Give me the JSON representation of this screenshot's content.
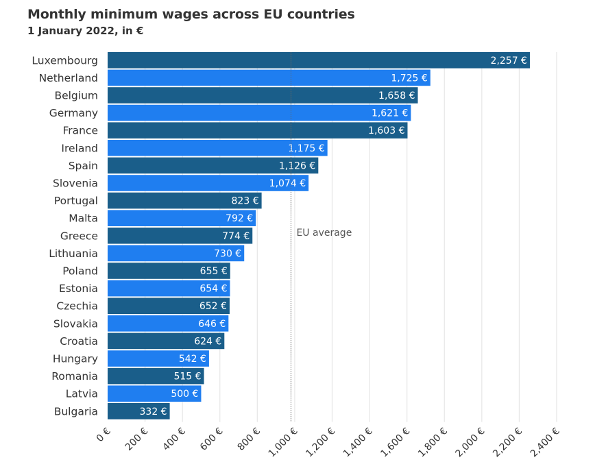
{
  "title": "Monthly minimum wages across EU countries",
  "subtitle": "1 January 2022, in €",
  "colors": {
    "dark": "#1a5e8a",
    "bright": "#1f7ef0",
    "grid": "#e6e6e6",
    "avg_line": "#666666"
  },
  "chart_data": {
    "type": "bar",
    "orientation": "horizontal",
    "title": "Monthly minimum wages across EU countries",
    "subtitle": "1 January 2022, in €",
    "categories": [
      "Luxembourg",
      "Netherland",
      "Belgium",
      "Germany",
      "France",
      "Ireland",
      "Spain",
      "Slovenia",
      "Portugal",
      "Malta",
      "Greece",
      "Lithuania",
      "Poland",
      "Estonia",
      "Czechia",
      "Slovakia",
      "Croatia",
      "Hungary",
      "Romania",
      "Latvia",
      "Bulgaria"
    ],
    "values": [
      2257,
      1725,
      1658,
      1621,
      1603,
      1175,
      1126,
      1074,
      823,
      792,
      774,
      730,
      655,
      654,
      652,
      646,
      624,
      542,
      515,
      500,
      332
    ],
    "value_labels": [
      "2,257 €",
      "1,725 €",
      "1,658 €",
      "1,621 €",
      "1,603 €",
      "1,175 €",
      "1,126 €",
      "1,074 €",
      "823 €",
      "792 €",
      "774 €",
      "730 €",
      "655 €",
      "654 €",
      "652 €",
      "646 €",
      "624 €",
      "542 €",
      "515 €",
      "500 €",
      "332 €"
    ],
    "xlim": [
      0,
      2400
    ],
    "ticks": [
      0,
      200,
      400,
      600,
      800,
      1000,
      1200,
      1400,
      1600,
      1800,
      2000,
      2200,
      2400
    ],
    "tick_labels": [
      "0 €",
      "200 €",
      "400 €",
      "600 €",
      "800 €",
      "1,000 €",
      "1,200 €",
      "1,400 €",
      "1,600 €",
      "1,800 €",
      "2,000 €",
      "2,200 €",
      "2,400 €"
    ],
    "grid": true,
    "reference_line": {
      "label": "EU average",
      "value": 980
    }
  }
}
